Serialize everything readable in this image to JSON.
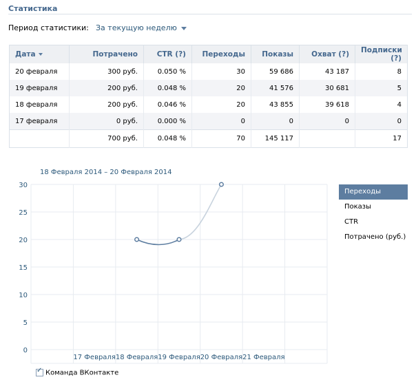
{
  "page": {
    "title": "Статистика"
  },
  "period": {
    "label": "Период статистики:",
    "value": "За текущую неделю"
  },
  "table": {
    "headers": [
      "Дата",
      "Потрачено",
      "CTR (?)",
      "Переходы",
      "Показы",
      "Охват (?)",
      "Подписки (?)"
    ],
    "rows": [
      [
        "20 февраля",
        "300 руб.",
        "0.050 %",
        "30",
        "59 686",
        "43 187",
        "8"
      ],
      [
        "19 февраля",
        "200 руб.",
        "0.048 %",
        "20",
        "41 576",
        "30 681",
        "5"
      ],
      [
        "18 февраля",
        "200 руб.",
        "0.046 %",
        "20",
        "43 855",
        "39 618",
        "4"
      ],
      [
        "17 февраля",
        "0 руб.",
        "0.000 %",
        "0",
        "0",
        "0",
        "0"
      ]
    ],
    "total": [
      "",
      "700 руб.",
      "0.048 %",
      "70",
      "145 117",
      "",
      "17"
    ]
  },
  "chart": {
    "range_label": "18 Февраля 2014 – 20 Февраля 2014"
  },
  "chart_data": {
    "type": "line",
    "title": "",
    "categories": [
      "",
      "17 Февраля",
      "18 Февраля",
      "19 Февраля",
      "20 Февраля",
      "21 Февраля",
      ""
    ],
    "series": [
      {
        "name": "Переходы",
        "points": [
          [
            2,
            20
          ],
          [
            3,
            20
          ],
          [
            4,
            30
          ]
        ]
      }
    ],
    "ylim": [
      0,
      30
    ],
    "yticks": [
      0,
      5,
      10,
      15,
      20,
      25,
      30
    ],
    "grid": true,
    "colors": {
      "line": "#5d7da0",
      "line_faded": "#c8d3de",
      "grid": "#e7ebf0"
    }
  },
  "legend": {
    "items": [
      "Переходы",
      "Показы",
      "CTR",
      "Потрачено (руб.)"
    ],
    "active": 0
  },
  "footer": {
    "checkbox_label": "Команда ВКонтакте",
    "checked": true
  }
}
